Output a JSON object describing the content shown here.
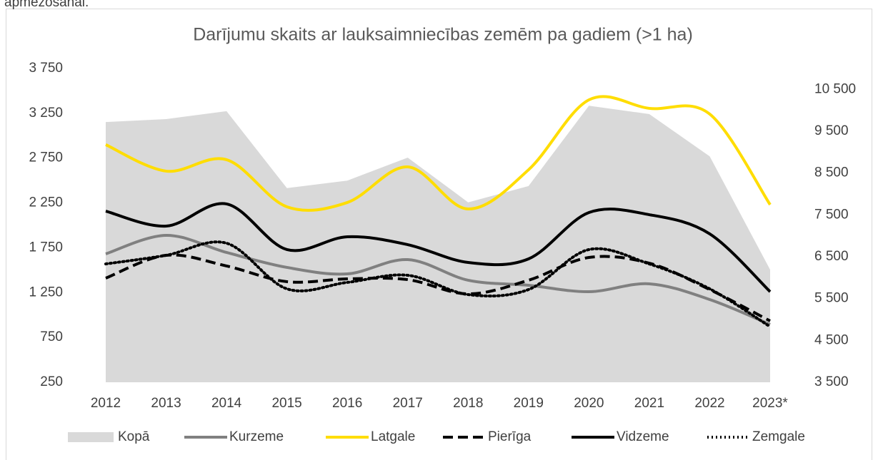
{
  "chart_data": {
    "type": "area_line_combo",
    "annotation": "apmežošanai.",
    "title": "Darījumu skaits ar lauksaimniecības zemēm pa gadiem (>1 ha)",
    "categories": [
      "2012",
      "2013",
      "2014",
      "2015",
      "2016",
      "2017",
      "2018",
      "2019",
      "2020",
      "2021",
      "2022",
      "2023*"
    ],
    "ylim": [
      250,
      3750
    ],
    "yticks": [
      250,
      750,
      {
        "value": 1250,
        "label": "1 250"
      },
      {
        "value": 1750,
        "label": "1 750"
      },
      {
        "value": 2250,
        "label": "2 250"
      },
      {
        "value": 2750,
        "label": "2 750"
      },
      {
        "value": 3250,
        "label": "3 250"
      },
      {
        "value": 3750,
        "label": "3 750"
      }
    ],
    "y2lim": [
      3500,
      11000
    ],
    "y2ticks": [
      {
        "value": 3500,
        "label": "3 500"
      },
      {
        "value": 4500,
        "label": "4 500"
      },
      {
        "value": 5500,
        "label": "5 500"
      },
      {
        "value": 6500,
        "label": "6 500"
      },
      {
        "value": 7500,
        "label": "7 500"
      },
      {
        "value": 8500,
        "label": "8 500"
      },
      {
        "value": 9500,
        "label": "9 500"
      },
      {
        "value": 10500,
        "label": "10 500"
      }
    ],
    "legend": "bottom",
    "series": [
      {
        "name": "Kopā",
        "kind": "area",
        "axis": "y2",
        "color": "#d9d9d9",
        "values": [
          9720,
          9790,
          9980,
          8140,
          8320,
          8870,
          7800,
          8190,
          10110,
          9910,
          8900,
          6190
        ]
      },
      {
        "name": "Kurzeme",
        "kind": "line",
        "style": "solid",
        "color": "#808080",
        "values": [
          1682,
          1889,
          1698,
          1531,
          1459,
          1618,
          1388,
          1332,
          1260,
          1348,
          1173,
          894
        ]
      },
      {
        "name": "Latgale",
        "kind": "line",
        "style": "solid",
        "color": "#ffdd00",
        "values": [
          2900,
          2605,
          2732,
          2207,
          2255,
          2652,
          2183,
          2620,
          3400,
          3305,
          3241,
          2231
        ]
      },
      {
        "name": "Pierīga",
        "kind": "line",
        "style": "dashed",
        "color": "#000000",
        "values": [
          1411,
          1666,
          1547,
          1372,
          1403,
          1395,
          1236,
          1388,
          1642,
          1578,
          1284,
          934
        ]
      },
      {
        "name": "Vidzeme",
        "kind": "line",
        "style": "solid",
        "color": "#000000",
        "values": [
          2159,
          1992,
          2239,
          1730,
          1873,
          1785,
          1586,
          1626,
          2143,
          2119,
          1905,
          1260
        ]
      },
      {
        "name": "Zemgale",
        "kind": "line",
        "style": "dotted",
        "color": "#000000",
        "values": [
          1570,
          1666,
          1801,
          1292,
          1364,
          1443,
          1228,
          1284,
          1730,
          1570,
          1292,
          870
        ]
      }
    ]
  }
}
